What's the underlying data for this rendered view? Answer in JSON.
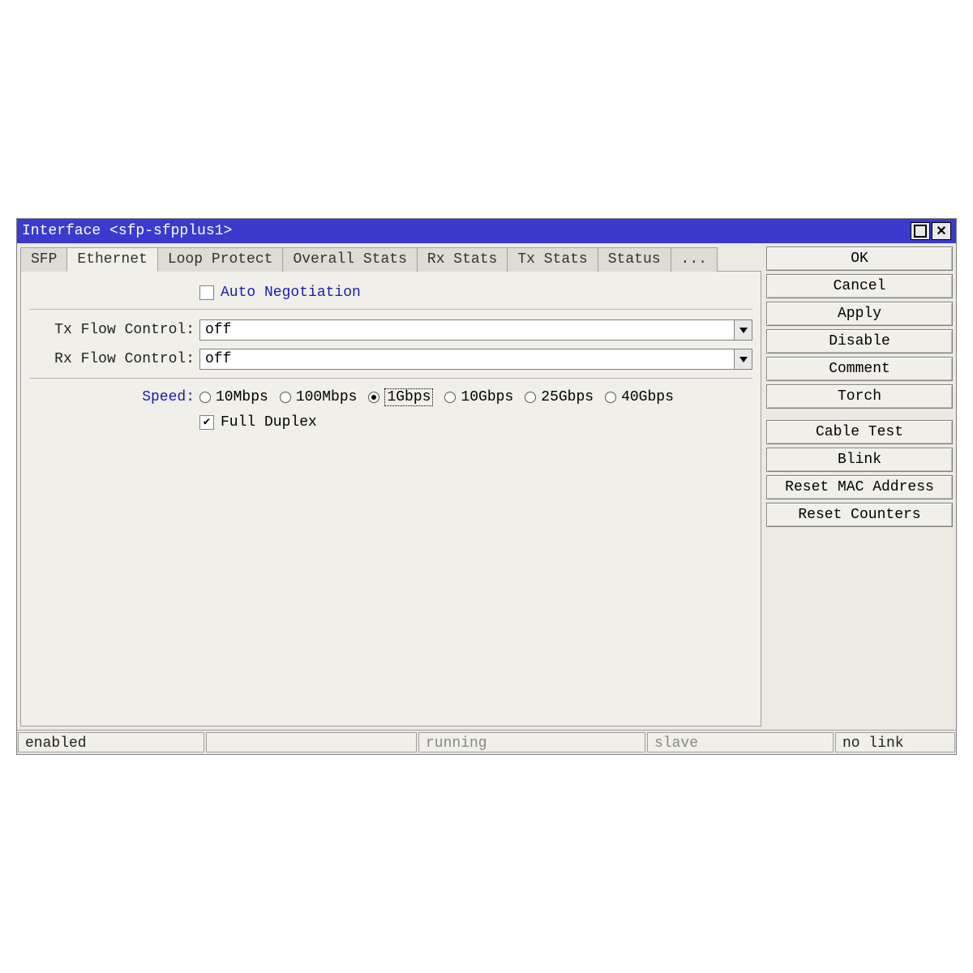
{
  "window": {
    "title": "Interface <sfp-sfpplus1>"
  },
  "tabs": {
    "items": [
      "SFP",
      "Ethernet",
      "Loop Protect",
      "Overall Stats",
      "Rx Stats",
      "Tx Stats",
      "Status",
      "..."
    ],
    "active_index": 1
  },
  "form": {
    "auto_negotiation": {
      "label": "Auto Negotiation",
      "checked": false
    },
    "tx_flow_control": {
      "label": "Tx Flow Control:",
      "value": "off"
    },
    "rx_flow_control": {
      "label": "Rx Flow Control:",
      "value": "off"
    },
    "speed": {
      "label": "Speed:",
      "options": [
        "10Mbps",
        "100Mbps",
        "1Gbps",
        "10Gbps",
        "25Gbps",
        "40Gbps"
      ],
      "selected_index": 2
    },
    "full_duplex": {
      "label": "Full Duplex",
      "checked": true
    }
  },
  "buttons": {
    "ok": "OK",
    "cancel": "Cancel",
    "apply": "Apply",
    "disable": "Disable",
    "comment": "Comment",
    "torch": "Torch",
    "cable_test": "Cable Test",
    "blink": "Blink",
    "reset_mac": "Reset MAC Address",
    "reset_counters": "Reset Counters"
  },
  "status": {
    "s1": "enabled",
    "s2": "",
    "s3": "running",
    "s4": "slave",
    "s5": "no link"
  },
  "colors": {
    "titlebar_bg": "#3a3acf",
    "window_bg": "#ece9e3",
    "panel_bg": "#f0efe9",
    "accent_text": "#1a1ab5"
  }
}
